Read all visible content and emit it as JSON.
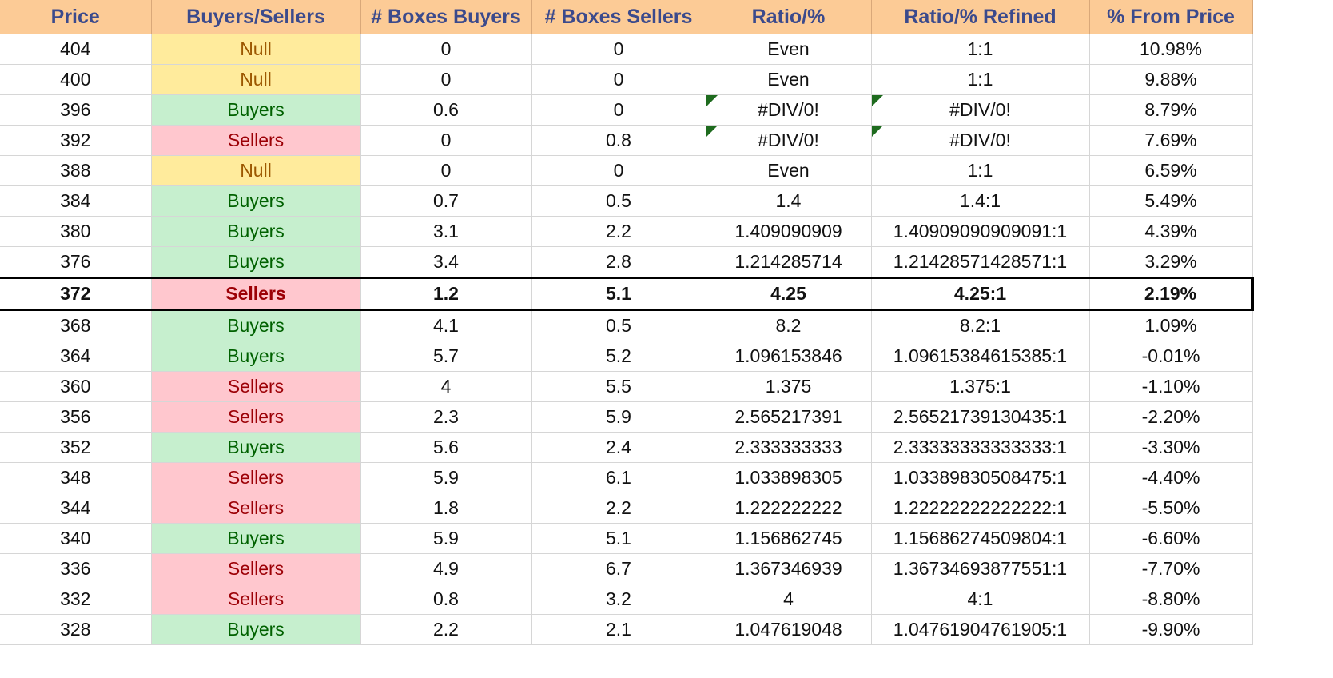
{
  "headers": [
    "Price",
    "Buyers/Sellers",
    "# Boxes Buyers",
    "# Boxes Sellers",
    "Ratio/%",
    "Ratio/% Refined",
    "% From Price"
  ],
  "colors": {
    "header_bg": "#fccb96",
    "header_text": "#3b4a8c",
    "buyers_bg": "#c6efce",
    "buyers_text": "#006100",
    "sellers_bg": "#ffc7ce",
    "sellers_text": "#9c0006",
    "null_bg": "#ffeb9c",
    "null_text": "#9c5700"
  },
  "rows": [
    {
      "price": "404",
      "side": "Null",
      "buyers": "0",
      "sellers": "0",
      "ratio": "Even",
      "refined": "1:1",
      "from_price": "10.98%"
    },
    {
      "price": "400",
      "side": "Null",
      "buyers": "0",
      "sellers": "0",
      "ratio": "Even",
      "refined": "1:1",
      "from_price": "9.88%"
    },
    {
      "price": "396",
      "side": "Buyers",
      "buyers": "0.6",
      "sellers": "0",
      "ratio": "#DIV/0!",
      "refined": "#DIV/0!",
      "from_price": "8.79%",
      "error": true
    },
    {
      "price": "392",
      "side": "Sellers",
      "buyers": "0",
      "sellers": "0.8",
      "ratio": "#DIV/0!",
      "refined": "#DIV/0!",
      "from_price": "7.69%",
      "error": true
    },
    {
      "price": "388",
      "side": "Null",
      "buyers": "0",
      "sellers": "0",
      "ratio": "Even",
      "refined": "1:1",
      "from_price": "6.59%"
    },
    {
      "price": "384",
      "side": "Buyers",
      "buyers": "0.7",
      "sellers": "0.5",
      "ratio": "1.4",
      "refined": "1.4:1",
      "from_price": "5.49%"
    },
    {
      "price": "380",
      "side": "Buyers",
      "buyers": "3.1",
      "sellers": "2.2",
      "ratio": "1.409090909",
      "refined": "1.40909090909091:1",
      "from_price": "4.39%"
    },
    {
      "price": "376",
      "side": "Buyers",
      "buyers": "3.4",
      "sellers": "2.8",
      "ratio": "1.214285714",
      "refined": "1.21428571428571:1",
      "from_price": "3.29%"
    },
    {
      "price": "372",
      "side": "Sellers",
      "buyers": "1.2",
      "sellers": "5.1",
      "ratio": "4.25",
      "refined": "4.25:1",
      "from_price": "2.19%",
      "highlight": true
    },
    {
      "price": "368",
      "side": "Buyers",
      "buyers": "4.1",
      "sellers": "0.5",
      "ratio": "8.2",
      "refined": "8.2:1",
      "from_price": "1.09%"
    },
    {
      "price": "364",
      "side": "Buyers",
      "buyers": "5.7",
      "sellers": "5.2",
      "ratio": "1.096153846",
      "refined": "1.09615384615385:1",
      "from_price": "-0.01%"
    },
    {
      "price": "360",
      "side": "Sellers",
      "buyers": "4",
      "sellers": "5.5",
      "ratio": "1.375",
      "refined": "1.375:1",
      "from_price": "-1.10%"
    },
    {
      "price": "356",
      "side": "Sellers",
      "buyers": "2.3",
      "sellers": "5.9",
      "ratio": "2.565217391",
      "refined": "2.56521739130435:1",
      "from_price": "-2.20%"
    },
    {
      "price": "352",
      "side": "Buyers",
      "buyers": "5.6",
      "sellers": "2.4",
      "ratio": "2.333333333",
      "refined": "2.33333333333333:1",
      "from_price": "-3.30%"
    },
    {
      "price": "348",
      "side": "Sellers",
      "buyers": "5.9",
      "sellers": "6.1",
      "ratio": "1.033898305",
      "refined": "1.03389830508475:1",
      "from_price": "-4.40%"
    },
    {
      "price": "344",
      "side": "Sellers",
      "buyers": "1.8",
      "sellers": "2.2",
      "ratio": "1.222222222",
      "refined": "1.22222222222222:1",
      "from_price": "-5.50%"
    },
    {
      "price": "340",
      "side": "Buyers",
      "buyers": "5.9",
      "sellers": "5.1",
      "ratio": "1.156862745",
      "refined": "1.15686274509804:1",
      "from_price": "-6.60%"
    },
    {
      "price": "336",
      "side": "Sellers",
      "buyers": "4.9",
      "sellers": "6.7",
      "ratio": "1.367346939",
      "refined": "1.36734693877551:1",
      "from_price": "-7.70%"
    },
    {
      "price": "332",
      "side": "Sellers",
      "buyers": "0.8",
      "sellers": "3.2",
      "ratio": "4",
      "refined": "4:1",
      "from_price": "-8.80%"
    },
    {
      "price": "328",
      "side": "Buyers",
      "buyers": "2.2",
      "sellers": "2.1",
      "ratio": "1.047619048",
      "refined": "1.04761904761905:1",
      "from_price": "-9.90%"
    }
  ]
}
